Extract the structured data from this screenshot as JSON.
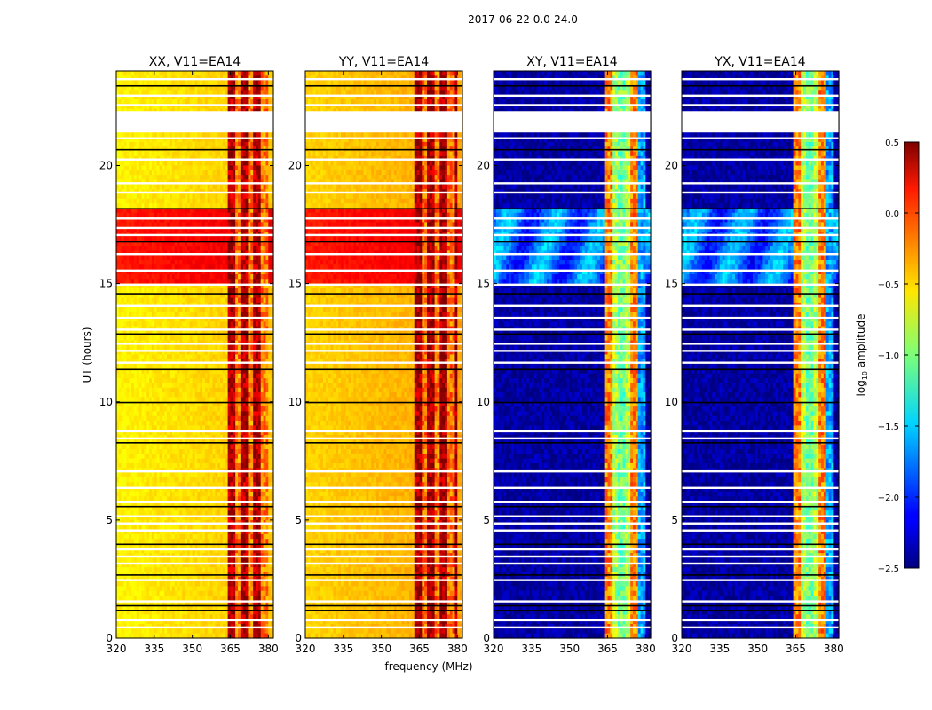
{
  "figure": {
    "suptitle": "2017-06-22 0.0-24.0",
    "ylabel": "UT (hours)",
    "xlabel": "frequency (MHz)"
  },
  "colorbar": {
    "label_prefix": "log",
    "label_sub": "10",
    "label_suffix": " amplitude",
    "range": [
      -2.5,
      0.5
    ],
    "ticks": [
      0.5,
      0.0,
      -0.5,
      -1.0,
      -1.5,
      -2.0,
      -2.5
    ],
    "tick_labels": [
      "0.5",
      "0.0",
      "−0.5",
      "−1.0",
      "−1.5",
      "−2.0",
      "−2.5"
    ],
    "colormap": "jet"
  },
  "chart_data": [
    {
      "type": "heatmap",
      "title": "XX, V11=EA14",
      "polarization": "XX",
      "xlim": [
        320,
        382
      ],
      "ylim": [
        0,
        24
      ],
      "xticks": [
        320,
        335,
        350,
        365,
        380
      ],
      "yticks": [
        0,
        5,
        10,
        15,
        20
      ],
      "ylabel": "UT (hours)",
      "background_level": -0.6,
      "band_levels": [
        {
          "freq_range": [
            364,
            380
          ],
          "level": 0.1
        }
      ],
      "period_levels": [
        {
          "ut_range": [
            5.7,
            9.0
          ],
          "level": 0.05
        }
      ]
    },
    {
      "type": "heatmap",
      "title": "YY, V11=EA14",
      "polarization": "YY",
      "xlim": [
        320,
        382
      ],
      "ylim": [
        0,
        24
      ],
      "xticks": [
        320,
        335,
        350,
        365,
        380
      ],
      "yticks": [
        0,
        5,
        10,
        15,
        20
      ],
      "xlabel": "frequency (MHz)",
      "background_level": -0.5,
      "band_levels": [
        {
          "freq_range": [
            363,
            380
          ],
          "level": 0.15
        }
      ],
      "period_levels": [
        {
          "ut_range": [
            5.7,
            9.0
          ],
          "level": 0.05
        }
      ]
    },
    {
      "type": "heatmap",
      "title": "XY, V11=EA14",
      "polarization": "XY",
      "xlim": [
        320,
        382
      ],
      "ylim": [
        0,
        24
      ],
      "xticks": [
        320,
        335,
        350,
        365,
        380
      ],
      "yticks": [
        0,
        5,
        10,
        15,
        20
      ],
      "background_level": -2.4,
      "band_levels": [
        {
          "freq_range": [
            364,
            380
          ],
          "level": -0.5
        }
      ],
      "period_levels": [
        {
          "ut_range": [
            5.7,
            9.0
          ],
          "level": -1.8
        }
      ]
    },
    {
      "type": "heatmap",
      "title": "YX, V11=EA14",
      "polarization": "YX",
      "xlim": [
        320,
        382
      ],
      "ylim": [
        0,
        24
      ],
      "xticks": [
        320,
        335,
        350,
        365,
        380
      ],
      "yticks": [
        0,
        5,
        10,
        15,
        20
      ],
      "background_level": -2.4,
      "band_levels": [
        {
          "freq_range": [
            364,
            380
          ],
          "level": -0.5
        }
      ],
      "period_levels": [
        {
          "ut_range": [
            5.7,
            9.0
          ],
          "level": -1.8
        }
      ]
    }
  ],
  "colors": {
    "flag_white": "#ffffff",
    "flag_black": "#000000"
  }
}
